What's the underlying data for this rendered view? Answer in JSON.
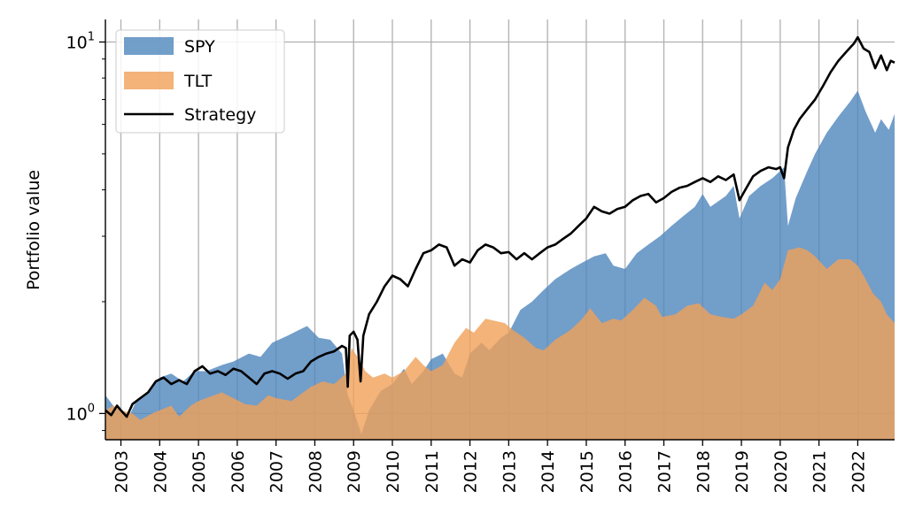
{
  "chart_data": {
    "type": "area",
    "title": "",
    "xlabel": "",
    "ylabel": "Portfolio value",
    "yscale": "log",
    "ylim": [
      0.85,
      11.5
    ],
    "xlim": [
      2002.6,
      2022.95
    ],
    "grid": "x-major and y-major",
    "legend_position": "top-left",
    "x_tick_labels": [
      "2003",
      "2004",
      "2005",
      "2006",
      "2007",
      "2008",
      "2009",
      "2010",
      "2011",
      "2012",
      "2013",
      "2014",
      "2015",
      "2016",
      "2017",
      "2018",
      "2019",
      "2020",
      "2021",
      "2022"
    ],
    "y_ticks": [
      {
        "value": 1,
        "base": "10",
        "exp": "0"
      },
      {
        "value": 10,
        "base": "10",
        "exp": "1"
      }
    ],
    "legend": [
      {
        "label": "SPY",
        "kind": "patch",
        "color": "#4f86bd"
      },
      {
        "label": "TLT",
        "kind": "patch",
        "color": "#f0a057"
      },
      {
        "label": "Strategy",
        "kind": "line",
        "color": "#000000"
      }
    ],
    "series": [
      {
        "name": "SPY",
        "kind": "area",
        "color": "#4f86bd",
        "opacity": 0.8,
        "points": [
          [
            2002.6,
            1.12
          ],
          [
            2002.8,
            1.05
          ],
          [
            2003.0,
            1.02
          ],
          [
            2003.2,
            0.98
          ],
          [
            2003.4,
            1.08
          ],
          [
            2003.7,
            1.15
          ],
          [
            2004.0,
            1.25
          ],
          [
            2004.3,
            1.28
          ],
          [
            2004.6,
            1.22
          ],
          [
            2004.9,
            1.3
          ],
          [
            2005.2,
            1.3
          ],
          [
            2005.6,
            1.35
          ],
          [
            2005.9,
            1.38
          ],
          [
            2006.3,
            1.45
          ],
          [
            2006.6,
            1.42
          ],
          [
            2006.9,
            1.55
          ],
          [
            2007.3,
            1.62
          ],
          [
            2007.6,
            1.68
          ],
          [
            2007.8,
            1.72
          ],
          [
            2008.1,
            1.6
          ],
          [
            2008.4,
            1.58
          ],
          [
            2008.7,
            1.45
          ],
          [
            2008.85,
            1.12
          ],
          [
            2009.0,
            1.02
          ],
          [
            2009.2,
            0.88
          ],
          [
            2009.4,
            1.02
          ],
          [
            2009.7,
            1.15
          ],
          [
            2010.0,
            1.2
          ],
          [
            2010.3,
            1.32
          ],
          [
            2010.5,
            1.2
          ],
          [
            2010.8,
            1.3
          ],
          [
            2011.0,
            1.4
          ],
          [
            2011.3,
            1.45
          ],
          [
            2011.6,
            1.28
          ],
          [
            2011.8,
            1.25
          ],
          [
            2012.0,
            1.45
          ],
          [
            2012.3,
            1.55
          ],
          [
            2012.5,
            1.48
          ],
          [
            2012.8,
            1.6
          ],
          [
            2013.0,
            1.65
          ],
          [
            2013.3,
            1.9
          ],
          [
            2013.6,
            2.0
          ],
          [
            2013.9,
            2.15
          ],
          [
            2014.2,
            2.3
          ],
          [
            2014.6,
            2.45
          ],
          [
            2014.9,
            2.55
          ],
          [
            2015.2,
            2.65
          ],
          [
            2015.5,
            2.7
          ],
          [
            2015.7,
            2.5
          ],
          [
            2016.0,
            2.45
          ],
          [
            2016.3,
            2.7
          ],
          [
            2016.6,
            2.85
          ],
          [
            2016.9,
            3.0
          ],
          [
            2017.2,
            3.2
          ],
          [
            2017.5,
            3.4
          ],
          [
            2017.8,
            3.6
          ],
          [
            2018.0,
            3.9
          ],
          [
            2018.2,
            3.6
          ],
          [
            2018.6,
            3.85
          ],
          [
            2018.8,
            4.1
          ],
          [
            2018.95,
            3.35
          ],
          [
            2019.2,
            3.85
          ],
          [
            2019.5,
            4.1
          ],
          [
            2019.8,
            4.3
          ],
          [
            2020.1,
            4.6
          ],
          [
            2020.2,
            3.2
          ],
          [
            2020.4,
            3.8
          ],
          [
            2020.7,
            4.5
          ],
          [
            2020.9,
            5.0
          ],
          [
            2021.2,
            5.7
          ],
          [
            2021.5,
            6.3
          ],
          [
            2021.8,
            6.9
          ],
          [
            2022.0,
            7.4
          ],
          [
            2022.2,
            6.5
          ],
          [
            2022.45,
            5.7
          ],
          [
            2022.6,
            6.2
          ],
          [
            2022.8,
            5.8
          ],
          [
            2022.95,
            6.4
          ]
        ]
      },
      {
        "name": "TLT",
        "kind": "area",
        "color": "#f0a057",
        "opacity": 0.8,
        "points": [
          [
            2002.6,
            1.02
          ],
          [
            2002.8,
            1.05
          ],
          [
            2003.0,
            1.02
          ],
          [
            2003.3,
            1.0
          ],
          [
            2003.5,
            0.96
          ],
          [
            2003.8,
            1.0
          ],
          [
            2004.0,
            1.02
          ],
          [
            2004.3,
            1.05
          ],
          [
            2004.5,
            0.98
          ],
          [
            2004.8,
            1.05
          ],
          [
            2005.0,
            1.08
          ],
          [
            2005.4,
            1.12
          ],
          [
            2005.6,
            1.14
          ],
          [
            2005.9,
            1.1
          ],
          [
            2006.2,
            1.06
          ],
          [
            2006.5,
            1.05
          ],
          [
            2006.8,
            1.12
          ],
          [
            2007.0,
            1.1
          ],
          [
            2007.4,
            1.08
          ],
          [
            2007.6,
            1.12
          ],
          [
            2007.9,
            1.18
          ],
          [
            2008.2,
            1.22
          ],
          [
            2008.5,
            1.2
          ],
          [
            2008.8,
            1.28
          ],
          [
            2008.95,
            1.5
          ],
          [
            2009.1,
            1.42
          ],
          [
            2009.3,
            1.3
          ],
          [
            2009.5,
            1.25
          ],
          [
            2009.8,
            1.28
          ],
          [
            2010.0,
            1.25
          ],
          [
            2010.3,
            1.3
          ],
          [
            2010.6,
            1.42
          ],
          [
            2010.8,
            1.35
          ],
          [
            2011.0,
            1.3
          ],
          [
            2011.3,
            1.35
          ],
          [
            2011.6,
            1.55
          ],
          [
            2011.9,
            1.7
          ],
          [
            2012.1,
            1.65
          ],
          [
            2012.4,
            1.8
          ],
          [
            2012.6,
            1.78
          ],
          [
            2012.9,
            1.75
          ],
          [
            2013.1,
            1.68
          ],
          [
            2013.4,
            1.6
          ],
          [
            2013.7,
            1.5
          ],
          [
            2013.9,
            1.48
          ],
          [
            2014.2,
            1.58
          ],
          [
            2014.6,
            1.68
          ],
          [
            2014.9,
            1.8
          ],
          [
            2015.1,
            1.92
          ],
          [
            2015.4,
            1.75
          ],
          [
            2015.7,
            1.8
          ],
          [
            2015.9,
            1.78
          ],
          [
            2016.2,
            1.9
          ],
          [
            2016.5,
            2.05
          ],
          [
            2016.8,
            1.95
          ],
          [
            2016.95,
            1.82
          ],
          [
            2017.3,
            1.85
          ],
          [
            2017.6,
            1.95
          ],
          [
            2017.9,
            1.98
          ],
          [
            2018.2,
            1.85
          ],
          [
            2018.5,
            1.82
          ],
          [
            2018.8,
            1.8
          ],
          [
            2019.0,
            1.85
          ],
          [
            2019.3,
            1.95
          ],
          [
            2019.6,
            2.25
          ],
          [
            2019.8,
            2.15
          ],
          [
            2020.0,
            2.3
          ],
          [
            2020.2,
            2.75
          ],
          [
            2020.5,
            2.8
          ],
          [
            2020.7,
            2.75
          ],
          [
            2020.9,
            2.65
          ],
          [
            2021.2,
            2.45
          ],
          [
            2021.5,
            2.6
          ],
          [
            2021.8,
            2.6
          ],
          [
            2022.0,
            2.5
          ],
          [
            2022.2,
            2.3
          ],
          [
            2022.4,
            2.1
          ],
          [
            2022.6,
            2.0
          ],
          [
            2022.75,
            1.85
          ],
          [
            2022.95,
            1.75
          ]
        ]
      },
      {
        "name": "Strategy",
        "kind": "line",
        "color": "#000000",
        "points": [
          [
            2002.6,
            1.02
          ],
          [
            2002.75,
            0.99
          ],
          [
            2002.9,
            1.05
          ],
          [
            2003.0,
            1.02
          ],
          [
            2003.15,
            0.98
          ],
          [
            2003.3,
            1.06
          ],
          [
            2003.5,
            1.1
          ],
          [
            2003.7,
            1.14
          ],
          [
            2003.9,
            1.22
          ],
          [
            2004.1,
            1.25
          ],
          [
            2004.3,
            1.2
          ],
          [
            2004.5,
            1.23
          ],
          [
            2004.7,
            1.2
          ],
          [
            2004.9,
            1.3
          ],
          [
            2005.1,
            1.34
          ],
          [
            2005.3,
            1.28
          ],
          [
            2005.5,
            1.3
          ],
          [
            2005.7,
            1.27
          ],
          [
            2005.9,
            1.32
          ],
          [
            2006.1,
            1.3
          ],
          [
            2006.3,
            1.25
          ],
          [
            2006.5,
            1.2
          ],
          [
            2006.7,
            1.28
          ],
          [
            2006.9,
            1.3
          ],
          [
            2007.1,
            1.28
          ],
          [
            2007.3,
            1.24
          ],
          [
            2007.5,
            1.28
          ],
          [
            2007.7,
            1.3
          ],
          [
            2007.9,
            1.38
          ],
          [
            2008.1,
            1.42
          ],
          [
            2008.3,
            1.45
          ],
          [
            2008.5,
            1.47
          ],
          [
            2008.7,
            1.52
          ],
          [
            2008.8,
            1.5
          ],
          [
            2008.85,
            1.18
          ],
          [
            2008.9,
            1.62
          ],
          [
            2009.0,
            1.66
          ],
          [
            2009.1,
            1.58
          ],
          [
            2009.18,
            1.22
          ],
          [
            2009.25,
            1.62
          ],
          [
            2009.4,
            1.85
          ],
          [
            2009.6,
            2.0
          ],
          [
            2009.8,
            2.2
          ],
          [
            2010.0,
            2.35
          ],
          [
            2010.2,
            2.3
          ],
          [
            2010.4,
            2.2
          ],
          [
            2010.6,
            2.45
          ],
          [
            2010.8,
            2.7
          ],
          [
            2011.0,
            2.75
          ],
          [
            2011.2,
            2.85
          ],
          [
            2011.4,
            2.8
          ],
          [
            2011.6,
            2.5
          ],
          [
            2011.8,
            2.6
          ],
          [
            2012.0,
            2.55
          ],
          [
            2012.2,
            2.75
          ],
          [
            2012.4,
            2.85
          ],
          [
            2012.6,
            2.8
          ],
          [
            2012.8,
            2.7
          ],
          [
            2013.0,
            2.72
          ],
          [
            2013.2,
            2.6
          ],
          [
            2013.4,
            2.7
          ],
          [
            2013.6,
            2.6
          ],
          [
            2013.8,
            2.7
          ],
          [
            2014.0,
            2.8
          ],
          [
            2014.2,
            2.85
          ],
          [
            2014.4,
            2.95
          ],
          [
            2014.6,
            3.05
          ],
          [
            2014.8,
            3.2
          ],
          [
            2015.0,
            3.35
          ],
          [
            2015.2,
            3.6
          ],
          [
            2015.4,
            3.5
          ],
          [
            2015.6,
            3.45
          ],
          [
            2015.8,
            3.55
          ],
          [
            2016.0,
            3.6
          ],
          [
            2016.2,
            3.75
          ],
          [
            2016.4,
            3.85
          ],
          [
            2016.6,
            3.9
          ],
          [
            2016.8,
            3.7
          ],
          [
            2017.0,
            3.8
          ],
          [
            2017.2,
            3.95
          ],
          [
            2017.4,
            4.05
          ],
          [
            2017.6,
            4.1
          ],
          [
            2017.8,
            4.2
          ],
          [
            2018.0,
            4.3
          ],
          [
            2018.2,
            4.2
          ],
          [
            2018.4,
            4.35
          ],
          [
            2018.6,
            4.25
          ],
          [
            2018.8,
            4.4
          ],
          [
            2018.95,
            3.75
          ],
          [
            2019.1,
            4.0
          ],
          [
            2019.3,
            4.35
          ],
          [
            2019.5,
            4.5
          ],
          [
            2019.7,
            4.6
          ],
          [
            2019.9,
            4.55
          ],
          [
            2020.0,
            4.6
          ],
          [
            2020.1,
            4.3
          ],
          [
            2020.2,
            5.2
          ],
          [
            2020.35,
            5.8
          ],
          [
            2020.5,
            6.2
          ],
          [
            2020.7,
            6.6
          ],
          [
            2020.9,
            7.0
          ],
          [
            2021.1,
            7.6
          ],
          [
            2021.3,
            8.3
          ],
          [
            2021.5,
            8.9
          ],
          [
            2021.7,
            9.4
          ],
          [
            2021.9,
            9.9
          ],
          [
            2022.0,
            10.3
          ],
          [
            2022.15,
            9.6
          ],
          [
            2022.3,
            9.4
          ],
          [
            2022.45,
            8.5
          ],
          [
            2022.6,
            9.2
          ],
          [
            2022.75,
            8.4
          ],
          [
            2022.85,
            8.9
          ],
          [
            2022.95,
            8.8
          ]
        ]
      }
    ]
  }
}
